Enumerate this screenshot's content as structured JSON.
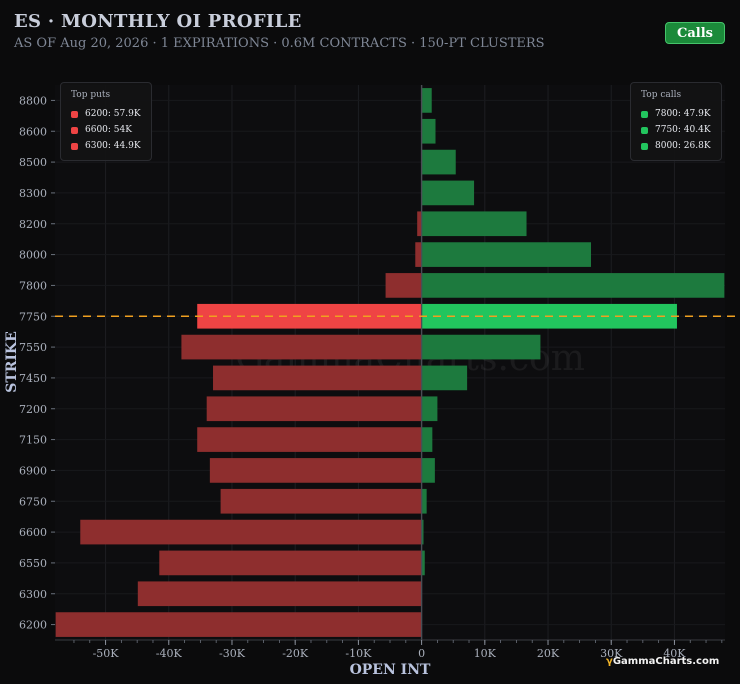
{
  "header": {
    "title": "ES · MONTHLY OI PROFILE",
    "subtitle": "AS OF Aug 20, 2026 · 1 EXPIRATIONS · 0.6M CONTRACTS · 150-PT CLUSTERS",
    "calls_button": "Calls"
  },
  "watermark": "GammaCharts.com",
  "brand": {
    "symbol": "γ",
    "text": "GammaCharts.com"
  },
  "colors": {
    "call": "#1d7a3e",
    "call_highlight": "#22c55e",
    "put": "#8e2e2e",
    "put_highlight": "#ef4444",
    "spot_line": "#f0a020",
    "background": "#0b0b0c"
  },
  "legend_puts": {
    "title": "Top puts",
    "items": [
      {
        "label": "6200: 57.9K"
      },
      {
        "label": "6600: 54K"
      },
      {
        "label": "6300: 44.9K"
      }
    ]
  },
  "legend_calls": {
    "title": "Top calls",
    "items": [
      {
        "label": "7800: 47.9K"
      },
      {
        "label": "7750: 40.4K"
      },
      {
        "label": "8000: 26.8K"
      }
    ]
  },
  "chart_data": {
    "type": "bar",
    "orientation": "horizontal",
    "title": "ES · MONTHLY OI PROFILE",
    "xlabel": "OPEN INT",
    "ylabel": "STRIKE",
    "xlim": [
      -58000,
      48000
    ],
    "xticks": [
      -50000,
      -40000,
      -30000,
      -20000,
      -10000,
      0,
      10000,
      20000,
      30000,
      40000
    ],
    "xtick_labels": [
      "-50K",
      "-40K",
      "-30K",
      "-20K",
      "-10K",
      "0",
      "10K",
      "20K",
      "30K",
      "40K"
    ],
    "categories": [
      "8800",
      "8600",
      "8500",
      "8300",
      "8200",
      "8000",
      "7800",
      "7750",
      "7550",
      "7450",
      "7200",
      "7150",
      "6900",
      "6750",
      "6600",
      "6550",
      "6300",
      "6200"
    ],
    "series": [
      {
        "name": "Calls",
        "values": [
          1600,
          2200,
          5400,
          8300,
          16600,
          26800,
          47900,
          40400,
          18800,
          7200,
          2500,
          1700,
          2100,
          800,
          300,
          500,
          0,
          0
        ]
      },
      {
        "name": "Puts",
        "values": [
          0,
          0,
          0,
          0,
          -700,
          -1000,
          -5700,
          -35500,
          -38000,
          -33000,
          -34000,
          -35500,
          -33500,
          -31800,
          -54000,
          -41500,
          -44900,
          -57900
        ]
      }
    ],
    "highlight_category": "7750",
    "spot_line_strike": "7750",
    "grid": true,
    "legend": [
      "top-left",
      "top-right"
    ]
  }
}
